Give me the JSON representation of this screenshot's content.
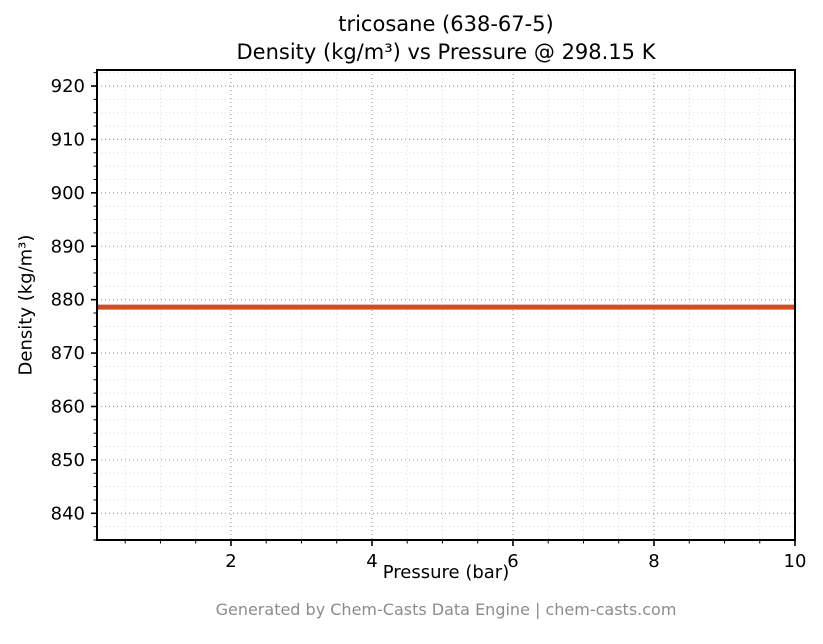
{
  "page": {
    "title_line1": "tricosane (638-67-5)",
    "title_line2": "Density (kg/m³) vs Pressure @ 298.15 K",
    "footer": "Generated by Chem-Casts Data Engine | chem-casts.com"
  },
  "chart_data": {
    "type": "line",
    "title": "tricosane (638-67-5)\nDensity (kg/m³) vs Pressure @ 298.15 K",
    "xlabel": "Pressure (bar)",
    "ylabel": "Density (kg/m³)",
    "xlim": [
      0.1,
      10
    ],
    "ylim": [
      835,
      923
    ],
    "x_ticks": [
      2,
      4,
      6,
      8,
      10
    ],
    "y_ticks": [
      840,
      850,
      860,
      870,
      880,
      890,
      900,
      910,
      920
    ],
    "x_minor_step": 0.5,
    "y_minor_step": 2.5,
    "grid": true,
    "legend_position": "none",
    "series": [
      {
        "name": "Density @ 298.15 K",
        "color": "#cd4f28",
        "line_width": 5,
        "x": [
          0.1,
          10
        ],
        "y": [
          878.6,
          878.6
        ]
      }
    ]
  },
  "style": {
    "grid_major_color": "#9a9a9a",
    "grid_minor_color": "#d9d9d9",
    "axis_color": "#000000",
    "tick_label_color": "#000000",
    "footer_color": "#8c8c8c"
  }
}
